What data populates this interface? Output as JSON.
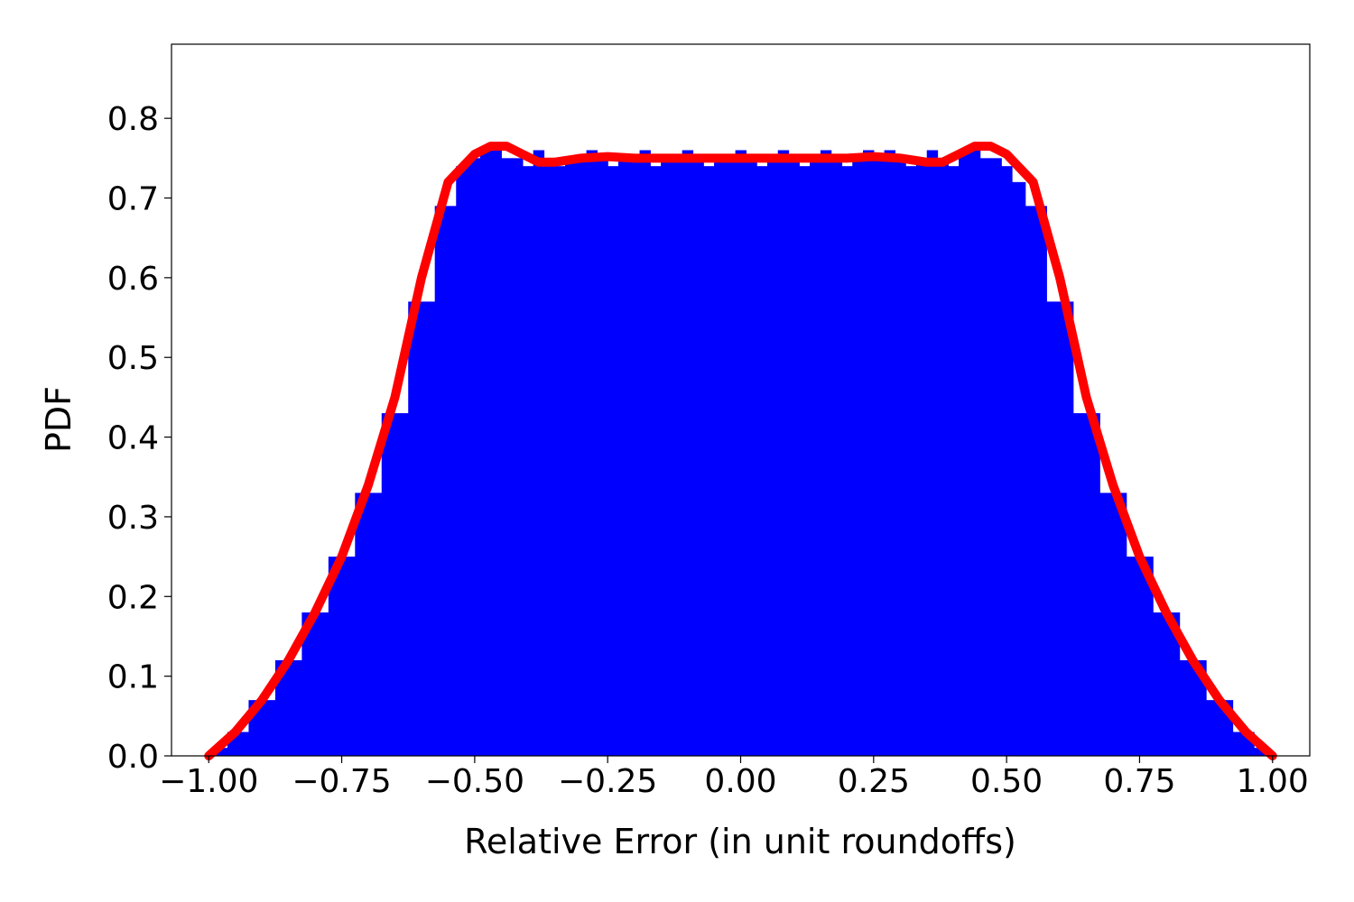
{
  "chart_data": {
    "type": "bar",
    "title": "",
    "xlabel": "Relative Error (in unit roundoffs)",
    "ylabel": "PDF",
    "xlim": [
      -1.07,
      1.07
    ],
    "ylim": [
      0.0,
      0.893
    ],
    "x_ticks": [
      -1.0,
      -0.75,
      -0.5,
      -0.25,
      0.0,
      0.25,
      0.5,
      0.75,
      1.0
    ],
    "x_tick_labels": [
      "−1.00",
      "−0.75",
      "−0.50",
      "−0.25",
      "0.00",
      "0.25",
      "0.50",
      "0.75",
      "1.00"
    ],
    "y_ticks": [
      0.0,
      0.1,
      0.2,
      0.3,
      0.4,
      0.5,
      0.6,
      0.7,
      0.8
    ],
    "y_tick_labels": [
      "0.0",
      "0.1",
      "0.2",
      "0.3",
      "0.4",
      "0.5",
      "0.6",
      "0.7",
      "0.8"
    ],
    "grid": false,
    "legend": "none",
    "colors": {
      "histogram": "#0000ff",
      "density_curve": "#ff0000"
    },
    "series": [
      {
        "kind": "histogram",
        "x": [
          -0.98,
          -0.95,
          -0.9,
          -0.85,
          -0.8,
          -0.75,
          -0.7,
          -0.65,
          -0.6,
          -0.55,
          -0.52,
          -0.5,
          -0.48,
          -0.46,
          -0.44,
          -0.42,
          -0.4,
          -0.38,
          -0.36,
          -0.34,
          -0.32,
          -0.3,
          -0.28,
          -0.26,
          -0.24,
          -0.22,
          -0.2,
          -0.18,
          -0.16,
          -0.14,
          -0.12,
          -0.1,
          -0.08,
          -0.06,
          -0.04,
          -0.02,
          0.0,
          0.02,
          0.04,
          0.06,
          0.08,
          0.1,
          0.12,
          0.14,
          0.16,
          0.18,
          0.2,
          0.22,
          0.24,
          0.26,
          0.28,
          0.3,
          0.32,
          0.34,
          0.36,
          0.38,
          0.4,
          0.42,
          0.44,
          0.46,
          0.48,
          0.5,
          0.52,
          0.55,
          0.6,
          0.65,
          0.7,
          0.75,
          0.8,
          0.85,
          0.9,
          0.95,
          0.98
        ],
        "values": [
          0.01,
          0.03,
          0.07,
          0.12,
          0.18,
          0.25,
          0.33,
          0.43,
          0.57,
          0.69,
          0.74,
          0.75,
          0.76,
          0.76,
          0.75,
          0.75,
          0.74,
          0.76,
          0.75,
          0.74,
          0.75,
          0.75,
          0.76,
          0.75,
          0.74,
          0.75,
          0.75,
          0.76,
          0.74,
          0.75,
          0.75,
          0.76,
          0.75,
          0.74,
          0.75,
          0.75,
          0.76,
          0.75,
          0.74,
          0.75,
          0.76,
          0.75,
          0.74,
          0.75,
          0.76,
          0.75,
          0.74,
          0.75,
          0.76,
          0.75,
          0.76,
          0.75,
          0.74,
          0.75,
          0.76,
          0.75,
          0.74,
          0.76,
          0.76,
          0.75,
          0.75,
          0.74,
          0.72,
          0.69,
          0.57,
          0.43,
          0.33,
          0.25,
          0.18,
          0.12,
          0.07,
          0.03,
          0.01
        ]
      },
      {
        "kind": "density_curve",
        "x": [
          -1.0,
          -0.95,
          -0.9,
          -0.85,
          -0.8,
          -0.75,
          -0.7,
          -0.65,
          -0.6,
          -0.55,
          -0.5,
          -0.47,
          -0.44,
          -0.41,
          -0.38,
          -0.35,
          -0.3,
          -0.25,
          -0.2,
          -0.15,
          -0.1,
          -0.05,
          0.0,
          0.05,
          0.1,
          0.15,
          0.2,
          0.25,
          0.3,
          0.35,
          0.38,
          0.41,
          0.44,
          0.47,
          0.5,
          0.55,
          0.6,
          0.65,
          0.7,
          0.75,
          0.8,
          0.85,
          0.9,
          0.95,
          1.0
        ],
        "values": [
          0.0,
          0.03,
          0.07,
          0.12,
          0.18,
          0.25,
          0.34,
          0.45,
          0.6,
          0.72,
          0.755,
          0.765,
          0.765,
          0.755,
          0.745,
          0.745,
          0.75,
          0.752,
          0.75,
          0.75,
          0.75,
          0.75,
          0.75,
          0.75,
          0.75,
          0.75,
          0.75,
          0.752,
          0.75,
          0.745,
          0.745,
          0.755,
          0.765,
          0.765,
          0.755,
          0.72,
          0.6,
          0.45,
          0.34,
          0.25,
          0.18,
          0.12,
          0.07,
          0.03,
          0.0
        ]
      }
    ]
  }
}
